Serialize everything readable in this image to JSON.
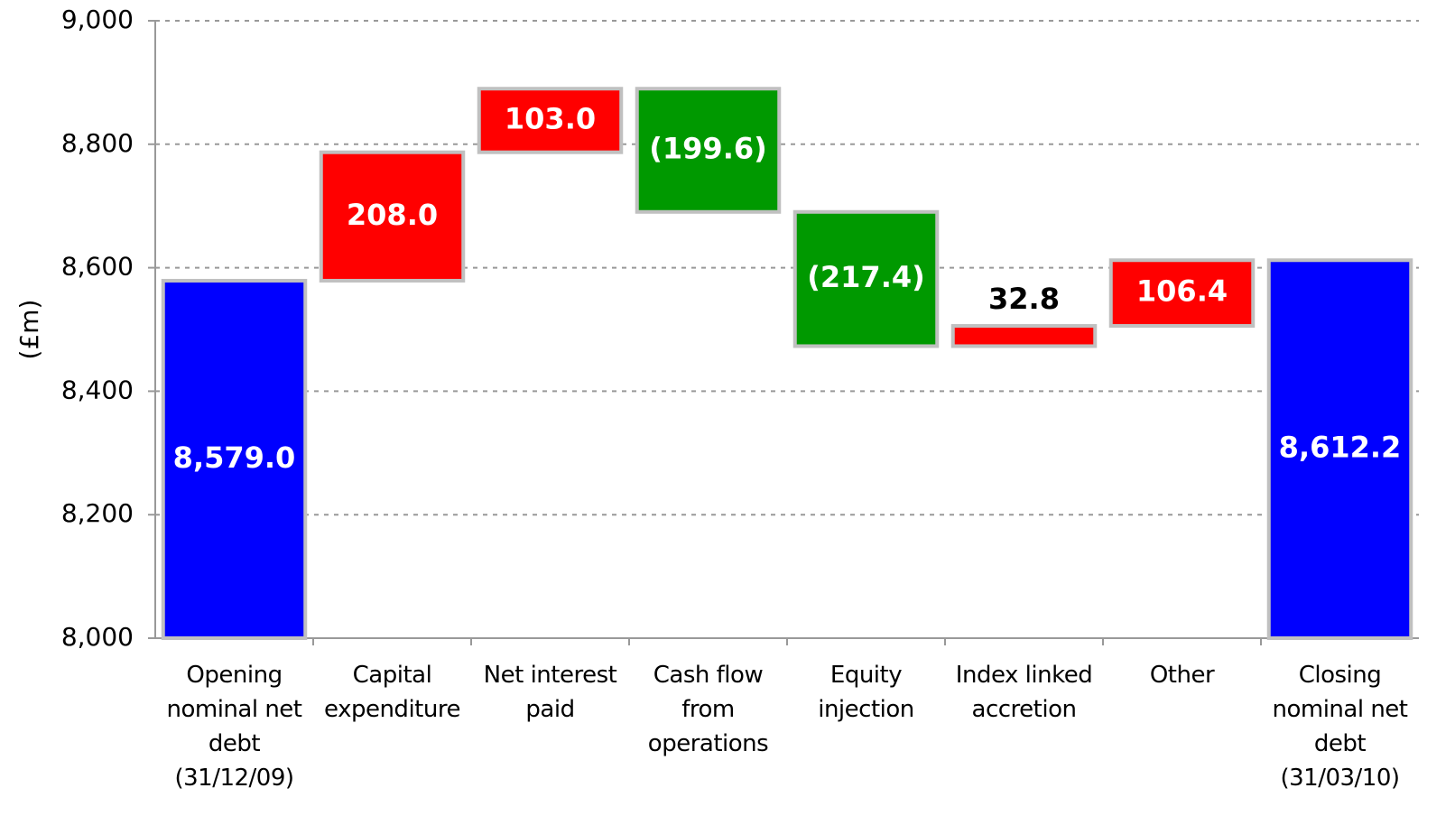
{
  "chart_data": {
    "type": "waterfall",
    "y_label": "(£m)",
    "categories": [
      "Opening nominal net debt (31/12/09)",
      "Capital expenditure",
      "Net interest paid",
      "Cash flow from operations",
      "Equity injection",
      "Index linked accretion",
      "Other",
      "Closing nominal net debt (31/03/10)"
    ],
    "values": [
      8579.0,
      208.0,
      103.0,
      -199.6,
      -217.4,
      32.8,
      106.4,
      8612.2
    ],
    "value_labels": [
      "8,579.0",
      "208.0",
      "103.0",
      "(199.6)",
      "(217.4)",
      "32.8",
      "106.4",
      "8,612.2"
    ],
    "measure": [
      "total",
      "relative",
      "relative",
      "relative",
      "relative",
      "relative",
      "relative",
      "total"
    ],
    "colors": {
      "total": "#0000ff",
      "increase": "#ff0000",
      "decrease": "#009900"
    },
    "ylim": [
      8000,
      9000
    ],
    "yticks": [
      {
        "value": 8000,
        "label": "8,000"
      },
      {
        "value": 8200,
        "label": "8,200"
      },
      {
        "value": 8400,
        "label": "8,400"
      },
      {
        "value": 8600,
        "label": "8,600"
      },
      {
        "value": 8800,
        "label": "8,800"
      },
      {
        "value": 9000,
        "label": "9,000"
      }
    ],
    "grid": true
  }
}
